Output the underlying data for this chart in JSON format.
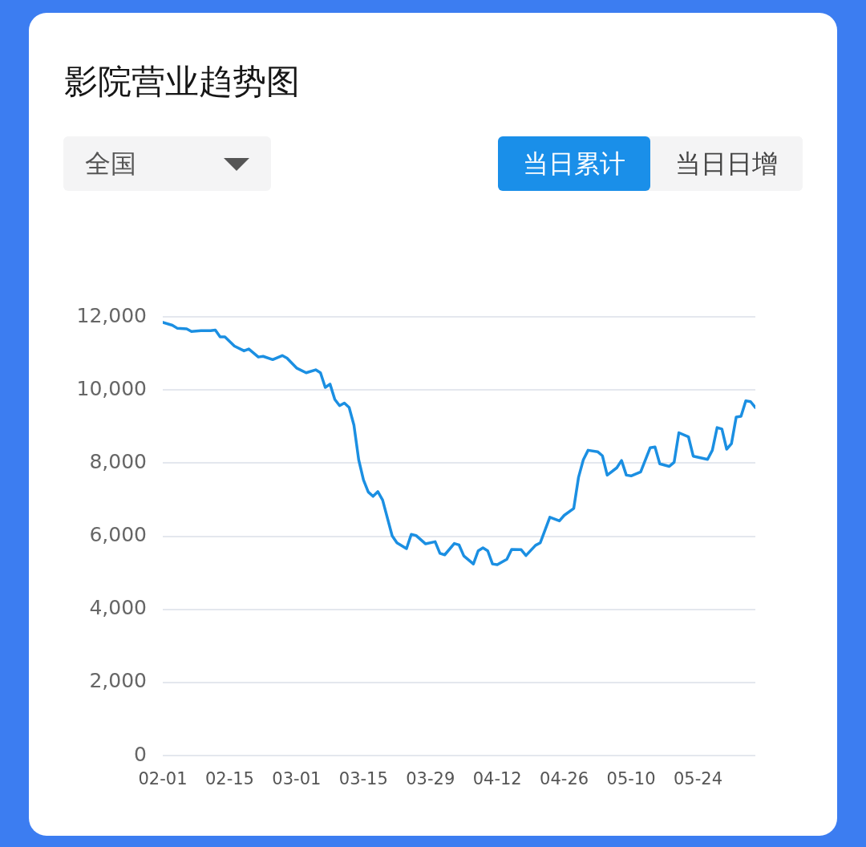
{
  "chart_data": {
    "type": "line",
    "title": "影院营业趋势图",
    "annotations": [
      "全国",
      "当日累计",
      "当日日增"
    ],
    "x": [
      "--02-01",
      "--02-03",
      "--02-04",
      "--02-06",
      "--02-07",
      "--02-09",
      "--02-11",
      "--02-12",
      "--02-13",
      "--02-14",
      "--02-16",
      "--02-18",
      "--02-19",
      "--02-21",
      "--02-22",
      "--02-24",
      "--02-26",
      "--02-27",
      "--03-01",
      "--03-03",
      "--03-05",
      "--03-06",
      "--03-07",
      "--03-08",
      "--03-09",
      "--03-10",
      "--03-11",
      "--03-12",
      "--03-13",
      "--03-14",
      "--03-15",
      "--03-16",
      "--03-17",
      "--03-18",
      "--03-19",
      "--03-21",
      "--03-22",
      "--03-24",
      "--03-25",
      "--03-26",
      "--03-28",
      "--03-30",
      "--03-31",
      "--04-01",
      "--04-03",
      "--04-04",
      "--04-05",
      "--04-07",
      "--04-08",
      "--04-09",
      "--04-10",
      "--04-11",
      "--04-12",
      "--04-14",
      "--04-15",
      "--04-17",
      "--04-18",
      "--04-20",
      "--04-21",
      "--04-23",
      "--04-25",
      "--04-26",
      "--04-28",
      "--04-29",
      "--04-30",
      "--05-01",
      "--05-03",
      "--05-04",
      "--05-05",
      "--05-07",
      "--05-08",
      "--05-09",
      "--05-10",
      "--05-12",
      "--05-14",
      "--05-15",
      "--05-16",
      "--05-18",
      "--05-19",
      "--05-20",
      "--05-22",
      "--05-23",
      "--05-26",
      "--05-27",
      "--05-28",
      "--05-29",
      "--05-30",
      "--05-31",
      "--06-01",
      "--06-02",
      "--06-03",
      "--06-04",
      "--06-05"
    ],
    "values": [
      11850,
      11770,
      11690,
      11670,
      11600,
      11620,
      11620,
      11640,
      11450,
      11450,
      11200,
      11070,
      11120,
      10900,
      10920,
      10830,
      10940,
      10870,
      10600,
      10470,
      10550,
      10470,
      10070,
      10160,
      9740,
      9570,
      9640,
      9520,
      9040,
      8090,
      7540,
      7210,
      7090,
      7220,
      6990,
      6010,
      5820,
      5660,
      6050,
      6020,
      5790,
      5850,
      5530,
      5490,
      5800,
      5760,
      5460,
      5240,
      5600,
      5680,
      5600,
      5240,
      5220,
      5370,
      5640,
      5630,
      5470,
      5750,
      5820,
      6520,
      6420,
      6570,
      6760,
      7610,
      8090,
      8350,
      8310,
      8200,
      7670,
      7870,
      8070,
      7670,
      7650,
      7760,
      8420,
      8440,
      7980,
      7910,
      8020,
      8830,
      8720,
      8190,
      8100,
      8350,
      8970,
      8930,
      8380,
      8530,
      9260,
      9280,
      9700,
      9680,
      9520
    ],
    "color": "#1b8fe2",
    "marker": "none",
    "grid": "y",
    "xlim": [
      "--02-01",
      "--06-05"
    ],
    "xticks": [
      {
        "value": "--02-01",
        "label": "02-01"
      },
      {
        "value": "--02-15",
        "label": "02-15"
      },
      {
        "value": "--03-01",
        "label": "03-01"
      },
      {
        "value": "--03-15",
        "label": "03-15"
      },
      {
        "value": "--03-29",
        "label": "03-29"
      },
      {
        "value": "--04-12",
        "label": "04-12"
      },
      {
        "value": "--04-26",
        "label": "04-26"
      },
      {
        "value": "--05-10",
        "label": "05-10"
      },
      {
        "value": "--05-24",
        "label": "05-24"
      }
    ],
    "ylim": [
      0,
      12000
    ],
    "yticks": [
      {
        "value": 0,
        "label": "0"
      },
      {
        "value": 2000,
        "label": "2,000"
      },
      {
        "value": 4000,
        "label": "4,000"
      },
      {
        "value": 6000,
        "label": "6,000"
      },
      {
        "value": 8000,
        "label": "8,000"
      },
      {
        "value": 10000,
        "label": "10,000"
      },
      {
        "value": 12000,
        "label": "12,000"
      }
    ]
  }
}
